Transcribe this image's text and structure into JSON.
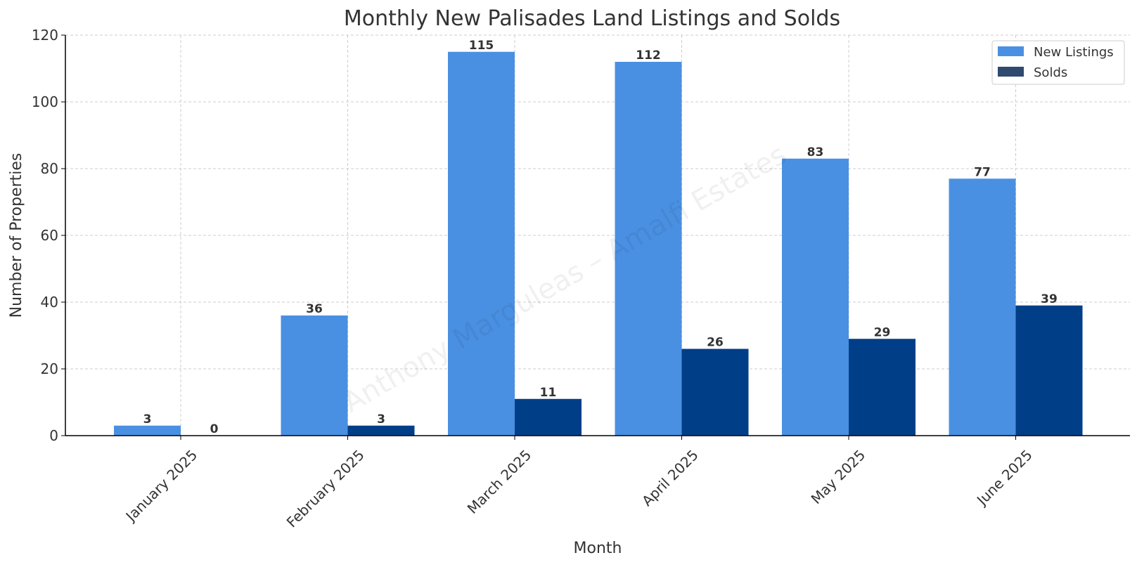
{
  "chart_data": {
    "type": "bar",
    "title": "Monthly New Palisades Land Listings and Solds",
    "xlabel": "Month",
    "ylabel": "Number of Properties",
    "categories": [
      "January 2025",
      "February 2025",
      "March 2025",
      "April 2025",
      "May 2025",
      "June 2025"
    ],
    "series": [
      {
        "name": "New Listings",
        "values": [
          3,
          36,
          115,
          112,
          83,
          77
        ],
        "color": "#4a90e2"
      },
      {
        "name": "Solds",
        "values": [
          0,
          3,
          11,
          26,
          29,
          39
        ],
        "color": "#003f87",
        "legend_color": "#2f4a6e"
      }
    ],
    "ylim": [
      0,
      120
    ],
    "yticks": [
      0,
      20,
      40,
      60,
      80,
      100,
      120
    ],
    "grid": true,
    "legend_position": "top-right",
    "watermark": "Anthony Marguleas – Amalfi Estates"
  }
}
